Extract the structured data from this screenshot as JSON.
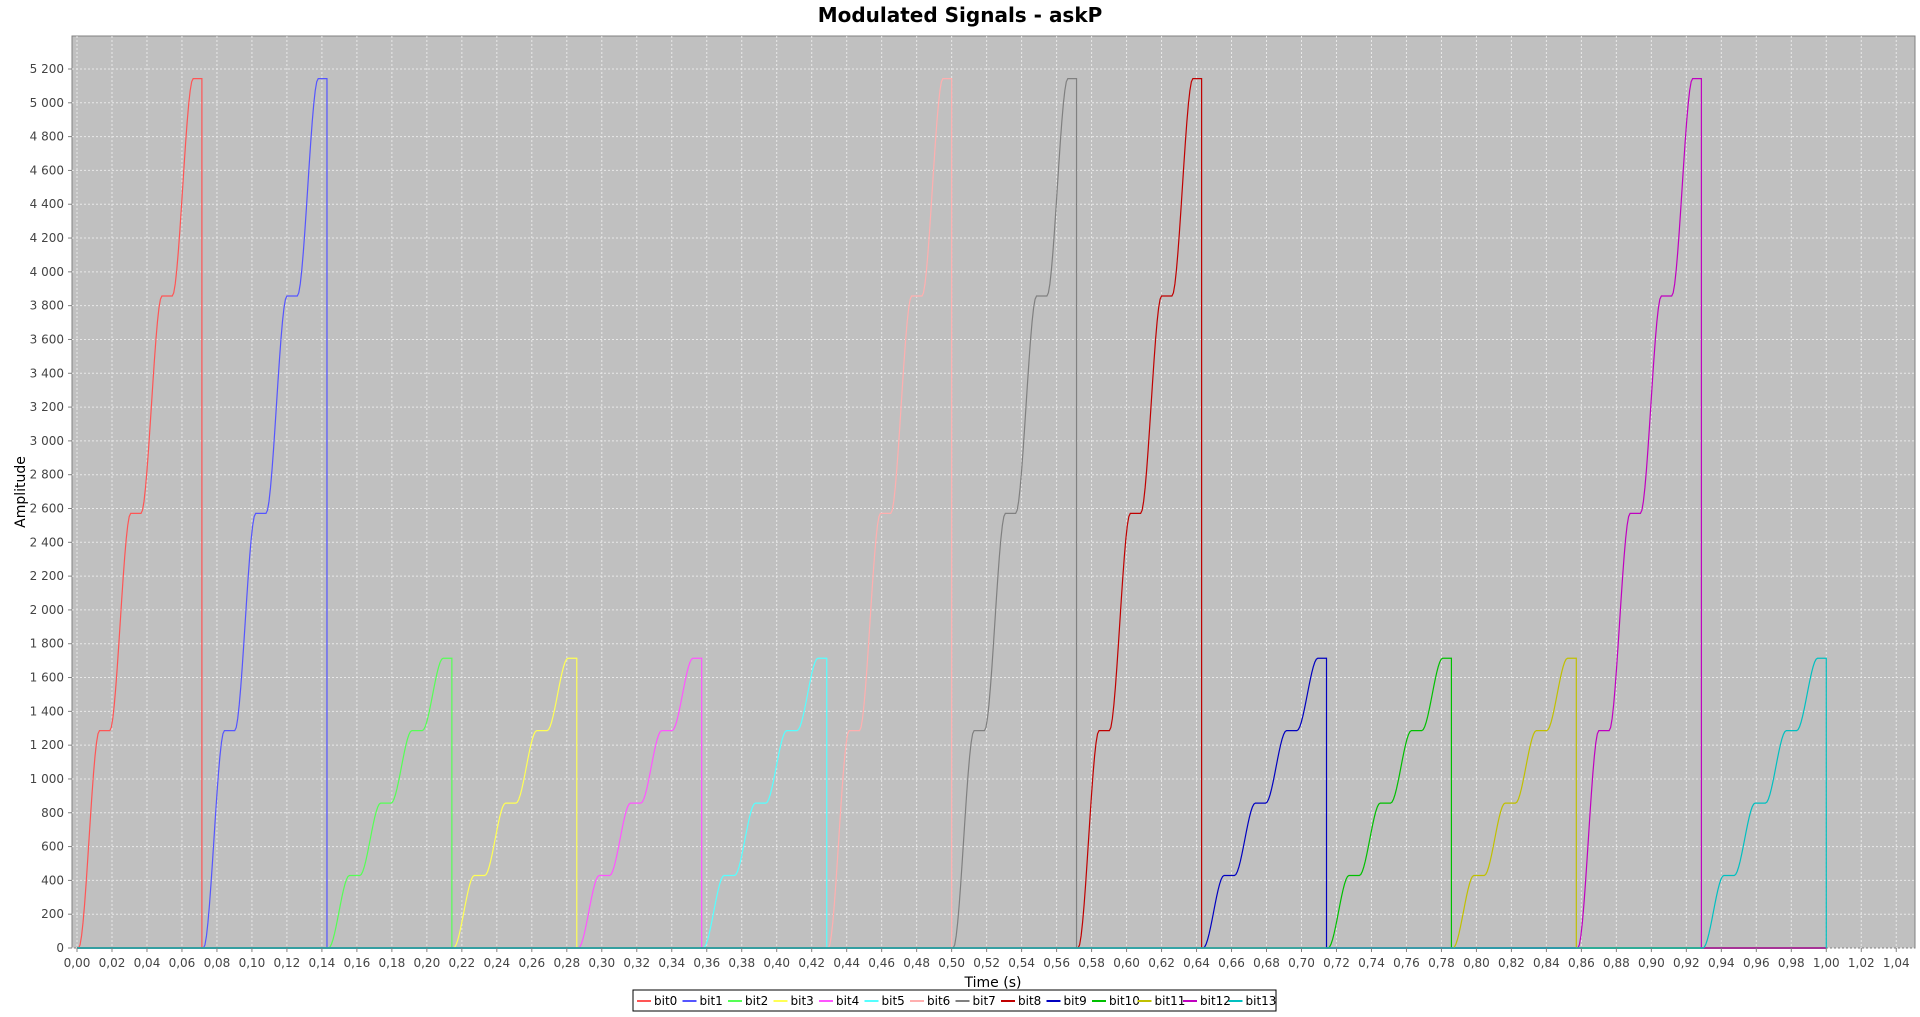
{
  "chart_data": {
    "type": "line",
    "title": "Modulated Signals - askP",
    "xlabel": "Time (s)",
    "ylabel": "Amplitude",
    "xlim": [
      0.0,
      1.045
    ],
    "ylim": [
      0,
      5400
    ],
    "x_ticks": [
      "0,00",
      "0,02",
      "0,04",
      "0,06",
      "0,08",
      "0,10",
      "0,12",
      "0,14",
      "0,16",
      "0,18",
      "0,20",
      "0,22",
      "0,24",
      "0,26",
      "0,28",
      "0,30",
      "0,32",
      "0,34",
      "0,36",
      "0,38",
      "0,40",
      "0,42",
      "0,44",
      "0,46",
      "0,48",
      "0,50",
      "0,52",
      "0,54",
      "0,56",
      "0,58",
      "0,60",
      "0,62",
      "0,64",
      "0,66",
      "0,68",
      "0,70",
      "0,72",
      "0,74",
      "0,76",
      "0,78",
      "0,80",
      "0,82",
      "0,84",
      "0,86",
      "0,88",
      "0,90",
      "0,92",
      "0,94",
      "0,96",
      "0,98",
      "1,00",
      "1,02",
      "1,04"
    ],
    "y_ticks": [
      "0",
      "200",
      "400",
      "600",
      "800",
      "1 000",
      "1 200",
      "1 400",
      "1 600",
      "1 800",
      "2 000",
      "2 200",
      "2 400",
      "2 600",
      "2 800",
      "3 000",
      "3 200",
      "3 400",
      "3 600",
      "3 800",
      "4 000",
      "4 200",
      "4 400",
      "4 600",
      "4 800",
      "5 000",
      "5 200"
    ],
    "grid": true,
    "legend_position": "bottom",
    "background": "#c0c0c0",
    "series": [
      {
        "name": "bit0",
        "color": "#ff5555",
        "start": 0.0,
        "end": 0.0714,
        "level": 1,
        "steps": [
          1286,
          2571,
          3857,
          5143
        ]
      },
      {
        "name": "bit1",
        "color": "#5555ff",
        "start": 0.0714,
        "end": 0.1429,
        "level": 1,
        "steps": [
          1286,
          2571,
          3857,
          5143
        ]
      },
      {
        "name": "bit2",
        "color": "#55ff55",
        "start": 0.1429,
        "end": 0.2143,
        "level": 0,
        "steps": [
          429,
          857,
          1286,
          1714
        ]
      },
      {
        "name": "bit3",
        "color": "#ffff55",
        "start": 0.2143,
        "end": 0.2857,
        "level": 0,
        "steps": [
          429,
          857,
          1286,
          1714
        ]
      },
      {
        "name": "bit4",
        "color": "#ff55ff",
        "start": 0.2857,
        "end": 0.3571,
        "level": 0,
        "steps": [
          429,
          857,
          1286,
          1714
        ]
      },
      {
        "name": "bit5",
        "color": "#55ffff",
        "start": 0.3571,
        "end": 0.4286,
        "level": 0,
        "steps": [
          429,
          857,
          1286,
          1714
        ]
      },
      {
        "name": "bit6",
        "color": "#ffafaf",
        "start": 0.4286,
        "end": 0.5,
        "level": 1,
        "steps": [
          1286,
          2571,
          3857,
          5143
        ]
      },
      {
        "name": "bit7",
        "color": "#808080",
        "start": 0.5,
        "end": 0.5714,
        "level": 1,
        "steps": [
          1286,
          2571,
          3857,
          5143
        ]
      },
      {
        "name": "bit8",
        "color": "#c00000",
        "start": 0.5714,
        "end": 0.6429,
        "level": 1,
        "steps": [
          1286,
          2571,
          3857,
          5143
        ]
      },
      {
        "name": "bit9",
        "color": "#0000c0",
        "start": 0.6429,
        "end": 0.7143,
        "level": 0,
        "steps": [
          429,
          857,
          1286,
          1714
        ]
      },
      {
        "name": "bit10",
        "color": "#00c000",
        "start": 0.7143,
        "end": 0.7857,
        "level": 0,
        "steps": [
          429,
          857,
          1286,
          1714
        ]
      },
      {
        "name": "bit11",
        "color": "#c0c000",
        "start": 0.7857,
        "end": 0.8571,
        "level": 0,
        "steps": [
          429,
          857,
          1286,
          1714
        ]
      },
      {
        "name": "bit12",
        "color": "#c000c0",
        "start": 0.8571,
        "end": 0.9286,
        "level": 1,
        "steps": [
          1286,
          2571,
          3857,
          5143
        ]
      },
      {
        "name": "bit13",
        "color": "#00c0c0",
        "start": 0.9286,
        "end": 1.0,
        "level": 0,
        "steps": [
          429,
          857,
          1286,
          1714
        ]
      }
    ]
  }
}
